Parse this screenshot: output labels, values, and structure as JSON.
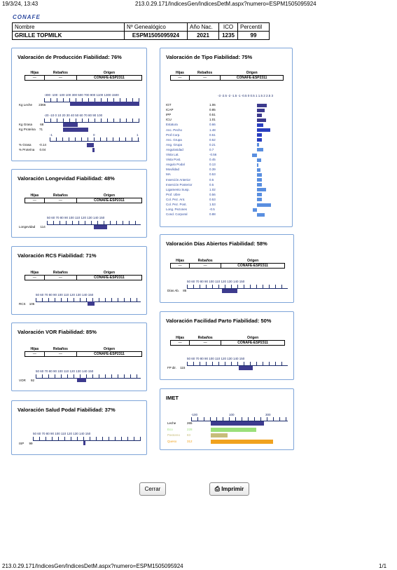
{
  "print_header": {
    "datetime": "19/3/24, 13:43",
    "url": "213.0.29.171/IndicesGen/IndicesDetM.aspx?numero=ESPM1505095924"
  },
  "logo": "CONAFE",
  "animal": {
    "h_nombre": "Nombre",
    "h_genealogico": "Nº Genealógico",
    "h_ano": "Año Nac.",
    "h_ico": "ICO",
    "h_percentil": "Percentil",
    "nombre": "GRILLE TOPMILK",
    "genealogico": "ESPM1505095924",
    "ano": "2021",
    "ico": "1235",
    "percentil": "99"
  },
  "sub": {
    "hijas": "Hijas",
    "rebanos": "Rebaños",
    "origen": "Origen",
    "dash": "—",
    "origen_val": "CONAFE-ESP2311"
  },
  "produccion": {
    "title": "Valoración de Producción Fiabilidad: 76%",
    "scale1": "-300 -100 -100 100 300 500 700 900 1100 1300 1500",
    "scale2": "-20 -10 0 10 20 30 40 50 60 70 80 90 100",
    "scale3_l": "-1",
    "scale3_m": "0",
    "scale3_r": "1",
    "rows": [
      {
        "n": "Kg Leche",
        "v": "2366"
      },
      {
        "n": "Kg Grasa",
        "v": "68"
      },
      {
        "n": "Kg Proteína",
        "v": "71"
      },
      {
        "n": "% Grasa",
        "v": "-0.14"
      },
      {
        "n": "% Proteína",
        "v": "0.04"
      }
    ]
  },
  "longevidad": {
    "title": "Valoración Longevidad Fiabilidad: 48%",
    "label": "Longevidad",
    "value": "114"
  },
  "rcs": {
    "title": "Valoración RCS Fiabilidad: 71%",
    "label": "RCS",
    "value": "105"
  },
  "vor": {
    "title": "Valoración VOR Fiabilidad: 85%",
    "label": "VOR",
    "value": "92"
  },
  "podal": {
    "title": "Valoración Salud Podal Fiabilidad: 37%",
    "label": "ISP",
    "value": "99"
  },
  "scale100": "50 60 70 80 90 100 110 120 130 140 150",
  "tipo": {
    "title": "Valoración de Tipo Fiabilidad: 75%",
    "scale": "-3 -2.5 -2 -1.5 -1 -0.5 0 0.5 1 1.5 2 2.5 3",
    "rows": [
      {
        "n": "IGT",
        "v": "1.06"
      },
      {
        "n": "ICAP",
        "v": "0.85"
      },
      {
        "n": "IPP",
        "v": "0.51"
      },
      {
        "n": "ICU",
        "v": "1.01"
      },
      {
        "n": "Estatura",
        "v": "0.66"
      },
      {
        "n": "Anc. Pecho",
        "v": "1.48"
      },
      {
        "n": "Prof.Corp.",
        "v": "0.51"
      },
      {
        "n": "Anc. Grupa",
        "v": "0.52"
      },
      {
        "n": "Ang. Grupa",
        "v": "0.21"
      },
      {
        "n": "Angulosidad",
        "v": "0.7"
      },
      {
        "n": "Vista Lat.",
        "v": "-0.56"
      },
      {
        "n": "Vista Post.",
        "v": "0.45"
      },
      {
        "n": "Angulo Podal",
        "v": "0.13"
      },
      {
        "n": "Movilidad",
        "v": "0.39"
      },
      {
        "n": "MA",
        "v": "0.53"
      },
      {
        "n": "Inserción Anterior",
        "v": "0.5"
      },
      {
        "n": "Inserción Posterior",
        "v": "0.5"
      },
      {
        "n": "Ligamento Susp.",
        "v": "1.02"
      },
      {
        "n": "Prof. Ubre",
        "v": "0.56"
      },
      {
        "n": "Col. Pez. Ant.",
        "v": "0.53"
      },
      {
        "n": "Col. Pez. Post.",
        "v": "1.53"
      },
      {
        "n": "Long. Pezones",
        "v": "-0.5"
      },
      {
        "n": "Cond. Corporal",
        "v": "0.88"
      }
    ]
  },
  "dias": {
    "title": "Valoración Días Abiertos Fiabilidad: 58%",
    "label": "Días Ab.",
    "value": "85"
  },
  "parto": {
    "title": "Valoración Facilidad Parto Fiabilidad: 50%",
    "label": "FP dir.",
    "value": "115"
  },
  "imet": {
    "title": "IMET",
    "scale_l": "-100",
    "scale_m": "100",
    "scale_r": "300",
    "rows": [
      {
        "n": "Leche",
        "v": "265",
        "c": "#3d3b8e"
      },
      {
        "n": "Eco",
        "v": "228",
        "c": "#9be07a"
      },
      {
        "n": "Pastoreo",
        "v": "83",
        "c": "#c7bd7a"
      },
      {
        "n": "Queso",
        "v": "312",
        "c": "#f0a21e"
      }
    ]
  },
  "buttons": {
    "cerrar": "Cerrar",
    "imprimir": "Imprimir"
  },
  "footer": {
    "url": "213.0.29.171/IndicesGen/IndicesDetM.aspx?numero=ESPM1505095924",
    "page": "1/1"
  }
}
